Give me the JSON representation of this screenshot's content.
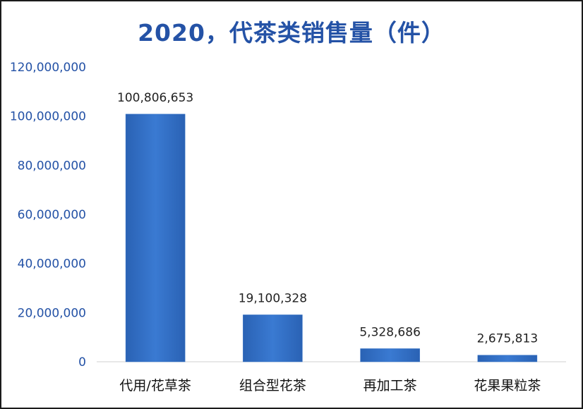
{
  "chart_data": {
    "type": "bar",
    "title": "2020，代茶类销售量（件）",
    "categories": [
      "代用/花草茶",
      "组合型花茶",
      "再加工茶",
      "花果果粒茶"
    ],
    "values": [
      100806653,
      19100328,
      5328686,
      2675813
    ],
    "value_labels": [
      "100,806,653",
      "19,100,328",
      "5,328,686",
      "2,675,813"
    ],
    "ylim": [
      0,
      120000000
    ],
    "yticks": [
      0,
      20000000,
      40000000,
      60000000,
      80000000,
      100000000,
      120000000
    ],
    "ytick_labels": [
      "0",
      "20,000,000",
      "40,000,000",
      "60,000,000",
      "80,000,000",
      "100,000,000",
      "120,000,000"
    ],
    "grid": false,
    "bar_color": "#2f6ec4"
  }
}
